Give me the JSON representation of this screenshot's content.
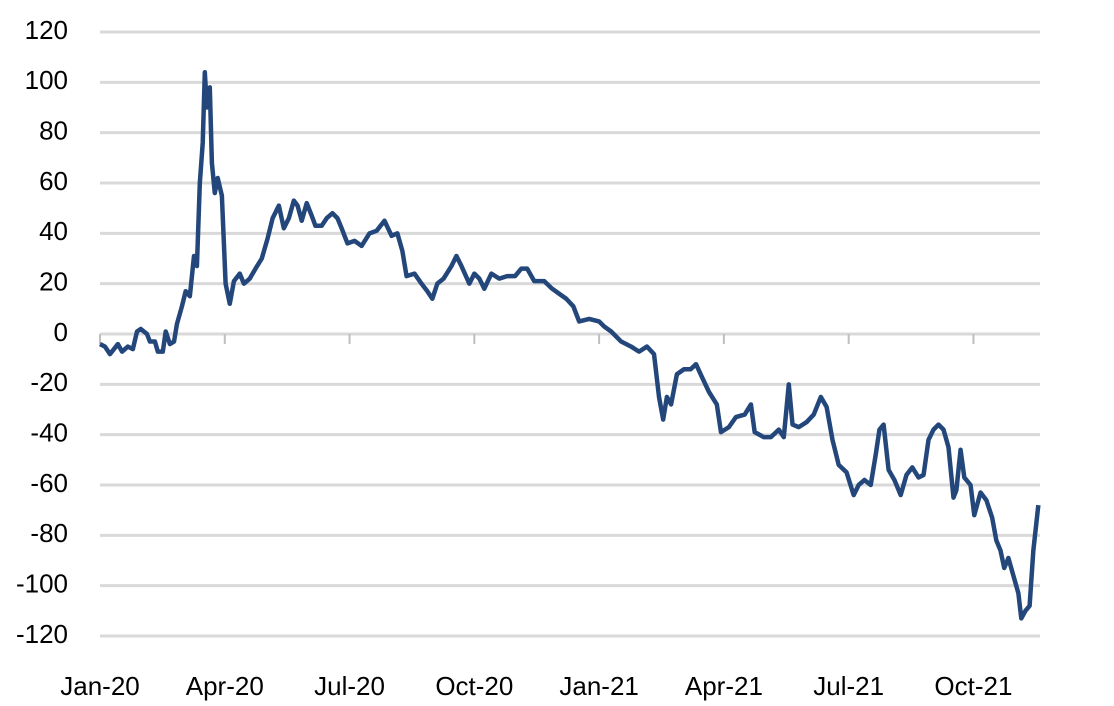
{
  "chart_data": {
    "type": "line",
    "x": [
      0,
      0.12,
      0.24,
      0.43,
      0.53,
      0.67,
      0.79,
      0.89,
      0.98,
      1.13,
      1.2,
      1.32,
      1.39,
      1.51,
      1.58,
      1.68,
      1.78,
      1.85,
      1.97,
      2.06,
      2.16,
      2.26,
      2.33,
      2.4,
      2.47,
      2.52,
      2.57,
      2.64,
      2.69,
      2.76,
      2.83,
      2.93,
      3.02,
      3.12,
      3.22,
      3.36,
      3.46,
      3.6,
      3.74,
      3.89,
      4.03,
      4.15,
      4.3,
      4.42,
      4.54,
      4.66,
      4.75,
      4.85,
      4.97,
      5.09,
      5.18,
      5.33,
      5.45,
      5.59,
      5.71,
      5.81,
      5.95,
      6.12,
      6.29,
      6.48,
      6.65,
      6.84,
      7.01,
      7.15,
      7.27,
      7.37,
      7.56,
      7.73,
      7.87,
      7.99,
      8.11,
      8.26,
      8.45,
      8.57,
      8.69,
      8.88,
      9.0,
      9.12,
      9.24,
      9.41,
      9.6,
      9.79,
      9.98,
      10.13,
      10.27,
      10.44,
      10.68,
      10.87,
      11.04,
      11.21,
      11.38,
      11.52,
      11.76,
      12.0,
      12.12,
      12.29,
      12.53,
      12.77,
      12.96,
      13.15,
      13.32,
      13.44,
      13.54,
      13.63,
      13.73,
      13.87,
      14.04,
      14.2,
      14.33,
      14.47,
      14.64,
      14.83,
      14.93,
      15.12,
      15.29,
      15.5,
      15.65,
      15.74,
      15.96,
      16.13,
      16.32,
      16.44,
      16.56,
      16.65,
      16.8,
      16.99,
      17.16,
      17.33,
      17.47,
      17.61,
      17.76,
      17.95,
      18.12,
      18.24,
      18.38,
      18.53,
      18.65,
      18.74,
      18.84,
      18.96,
      19.1,
      19.25,
      19.39,
      19.53,
      19.68,
      19.8,
      19.92,
      20.04,
      20.16,
      20.28,
      20.4,
      20.52,
      20.59,
      20.69,
      20.78,
      20.93,
      21.02,
      21.17,
      21.31,
      21.45,
      21.55,
      21.65,
      21.74,
      21.84,
      21.96,
      22.08,
      22.15,
      22.25,
      22.35,
      22.44,
      22.56
    ],
    "series": [
      {
        "color": "#24477b",
        "values": [
          -4,
          -5,
          -8,
          -4,
          -7,
          -5,
          -6,
          1,
          2,
          0,
          -3,
          -3,
          -7,
          -7,
          1,
          -4,
          -3,
          4,
          11,
          17,
          15,
          31,
          27,
          60,
          76,
          104,
          90,
          98,
          68,
          56,
          62,
          55,
          20,
          12,
          21,
          24,
          20,
          22,
          26,
          30,
          38,
          46,
          51,
          42,
          46,
          53,
          51,
          45,
          52,
          47,
          43,
          43,
          46,
          48,
          46,
          42,
          36,
          37,
          35,
          40,
          41,
          45,
          39,
          40,
          33,
          23,
          24,
          20,
          17,
          14,
          20,
          22,
          27,
          31,
          27,
          20,
          24,
          22,
          18,
          24,
          22,
          23,
          23,
          26,
          26,
          21,
          21,
          18,
          16,
          14,
          11,
          5,
          6,
          5,
          3,
          1,
          -3,
          -5,
          -7,
          -5,
          -8,
          -25,
          -34,
          -25,
          -28,
          -16,
          -14,
          -14,
          -12,
          -17,
          -23,
          -28,
          -39,
          -37,
          -33,
          -32,
          -28,
          -39,
          -41,
          -41,
          -38,
          -41,
          -20,
          -36,
          -37,
          -35,
          -32,
          -25,
          -29,
          -42,
          -52,
          -55,
          -64,
          -60,
          -58,
          -60,
          -48,
          -38,
          -36,
          -54,
          -58,
          -64,
          -56,
          -53,
          -57,
          -56,
          -42,
          -38,
          -36,
          -38,
          -45,
          -65,
          -62,
          -46,
          -57,
          -60,
          -72,
          -63,
          -66,
          -73,
          -82,
          -86,
          -93,
          -89,
          -96,
          -103,
          -113,
          -110,
          -108,
          -86,
          -68
        ]
      }
    ],
    "xlim": [
      0,
      22.6
    ],
    "xticks": [
      {
        "value": 0,
        "label": "Jan-20"
      },
      {
        "value": 3,
        "label": "Apr-20"
      },
      {
        "value": 6,
        "label": "Jul-20"
      },
      {
        "value": 9,
        "label": "Oct-20"
      },
      {
        "value": 12,
        "label": "Jan-21"
      },
      {
        "value": 15,
        "label": "Apr-21"
      },
      {
        "value": 18,
        "label": "Jul-21"
      },
      {
        "value": 21,
        "label": "Oct-21"
      }
    ],
    "ylim": [
      -120,
      120
    ],
    "yticks": [
      -120,
      -100,
      -80,
      -60,
      -40,
      -20,
      0,
      20,
      40,
      60,
      80,
      100,
      120
    ],
    "grid": true
  }
}
